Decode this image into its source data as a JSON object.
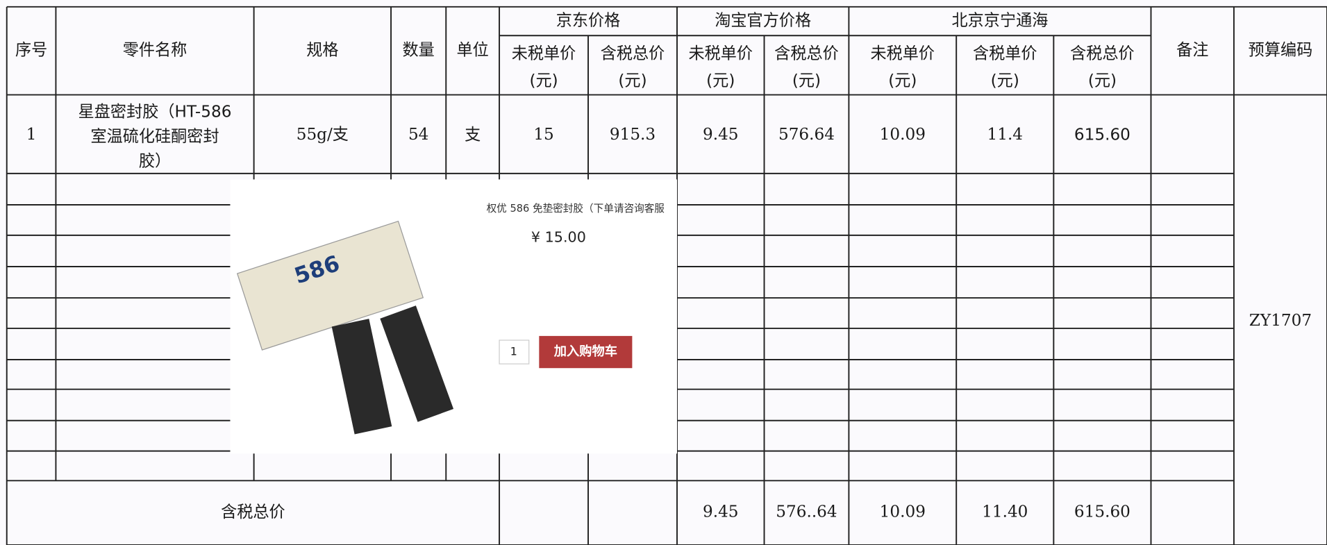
{
  "table": {
    "header": {
      "no": "序号",
      "name": "零件名称",
      "spec": "规格",
      "qty": "数量",
      "unit": "单位",
      "groups": [
        {
          "name": "京东价格",
          "cols": [
            {
              "label": "未税单价",
              "unit": "(元)"
            },
            {
              "label": "含税总价",
              "unit": "(元)"
            }
          ]
        },
        {
          "name": "淘宝官方价格",
          "cols": [
            {
              "label": "未税单价",
              "unit": "(元)"
            },
            {
              "label": "含税总价",
              "unit": "(元)"
            }
          ]
        },
        {
          "name": "北京京宁通海",
          "cols": [
            {
              "label": "未税单价",
              "unit": "(元)"
            },
            {
              "label": "含税单价",
              "unit": "(元)"
            },
            {
              "label": "含税总价",
              "unit": "(元)"
            }
          ]
        }
      ],
      "remark": "备注",
      "budget": "预算编码"
    },
    "row": {
      "no": "1",
      "name_lines": [
        "星盘密封胶（HT-586",
        "室温硫化硅酮密封",
        "胶）"
      ],
      "spec": "55g/支",
      "qty": "54",
      "unit": "支",
      "prices": [
        "15",
        "915.3",
        "9.45",
        "576.64",
        "10.09",
        "11.4",
        "615.60"
      ]
    },
    "budget_code": "ZY1707",
    "total": {
      "label": "含税总价",
      "prices": [
        "9.45",
        "576..64",
        "10.09",
        "11.40",
        "615.60"
      ]
    },
    "product_image": {
      "brand": "586",
      "title": "权优 586 免垫密封胶（下单请咨询客服",
      "price": "¥ 15.00",
      "button": "加入购物车",
      "qty": "1"
    }
  }
}
